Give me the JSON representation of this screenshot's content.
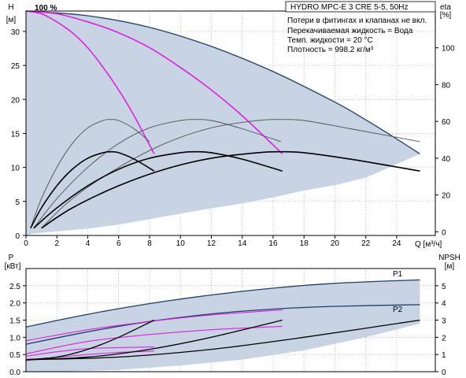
{
  "chart_data": [
    {
      "type": "line",
      "name": "HQ-curves",
      "title": "HYDRO MPC-E 3 CRE 5-5, 50Hz",
      "notes": [
        "Потери в фитингах и клапанах не вкл.",
        "Перекачиваемая жидкость = Вода",
        "Темп. жидкости = 20 °C",
        "Плотность = 998.2 кг/м³"
      ],
      "speed_label": "100 %",
      "xlabel": "Q [м³/ч]",
      "ylabel_left": [
        "H",
        "[м]"
      ],
      "ylabel_right": [
        "eta",
        "[%]"
      ],
      "xlim": [
        0,
        26.5
      ],
      "ylim_left": [
        0,
        33
      ],
      "ylim_right": [
        -2,
        120
      ],
      "x_ticks": [
        0,
        2,
        4,
        6,
        8,
        10,
        12,
        14,
        16,
        18,
        20,
        22,
        24
      ],
      "y_ticks_left": [
        0,
        5,
        10,
        15,
        20,
        25,
        30
      ],
      "y_ticks_right": [
        0,
        20,
        40,
        60,
        80,
        100
      ],
      "grid": true,
      "envelope_color": "#c8d4e4",
      "series": [
        {
          "role": "head-max",
          "color": "#1e3f6e",
          "x": [
            0,
            4,
            8,
            12,
            16,
            20,
            22,
            24,
            25.5
          ],
          "y": [
            33,
            32.3,
            30.6,
            27.8,
            24.1,
            19.6,
            17,
            14.2,
            12
          ]
        },
        {
          "role": "head-1pump",
          "color": "#e020e0",
          "x": [
            0,
            1,
            2,
            3,
            4,
            5,
            6,
            7,
            8,
            8.3
          ],
          "y": [
            33,
            32.6,
            31.4,
            29.8,
            27.6,
            24.7,
            21.4,
            17.6,
            13.3,
            12
          ]
        },
        {
          "role": "head-2pump",
          "color": "#e020e0",
          "x": [
            0,
            2,
            4,
            6,
            8,
            10,
            12,
            14,
            16,
            16.6
          ],
          "y": [
            33,
            32.6,
            31.4,
            29.8,
            27.6,
            24.7,
            21.4,
            17.6,
            13.3,
            12
          ]
        },
        {
          "role": "eta-thin-1",
          "color": "#505050",
          "x": [
            0.3,
            1,
            2,
            3,
            4,
            5,
            5.5,
            6,
            7,
            8
          ],
          "y": [
            2,
            18,
            35,
            48,
            56.5,
            60.5,
            61,
            60.5,
            56,
            49
          ]
        },
        {
          "role": "eta-thin-2",
          "color": "#505050",
          "x": [
            0.5,
            2,
            4,
            6,
            8,
            10,
            11,
            12,
            14,
            16.5
          ],
          "y": [
            2,
            18,
            35,
            48,
            56.5,
            60.5,
            61,
            60.5,
            56,
            49
          ]
        },
        {
          "role": "eta-thin-3",
          "color": "#505050",
          "x": [
            1,
            3,
            6,
            9,
            12,
            15,
            16.5,
            18,
            21,
            25.5
          ],
          "y": [
            2,
            18,
            35,
            48,
            56.5,
            60.5,
            61,
            60.5,
            56,
            49
          ]
        },
        {
          "role": "eta-thick-1",
          "color": "#000000",
          "x": [
            0.3,
            1,
            2,
            3,
            4,
            5,
            5.5,
            6,
            7,
            8.3
          ],
          "y": [
            2,
            13,
            25,
            34,
            40,
            43,
            43.5,
            43,
            39.5,
            33
          ]
        },
        {
          "role": "eta-thick-2",
          "color": "#000000",
          "x": [
            0.5,
            2,
            4,
            6,
            8,
            10,
            11,
            12,
            14,
            16.6
          ],
          "y": [
            2,
            13,
            25,
            34,
            40,
            43,
            43.5,
            43,
            39.5,
            33
          ]
        },
        {
          "role": "eta-thick-3",
          "color": "#000000",
          "x": [
            1,
            3,
            6,
            9,
            12,
            15,
            16.5,
            18,
            21,
            25.5
          ],
          "y": [
            2,
            13,
            25,
            34,
            40,
            43,
            43.5,
            43,
            39.5,
            33
          ]
        }
      ]
    },
    {
      "type": "line",
      "name": "P-NPSH-curves",
      "ylabel_left": [
        "P",
        "[кВт]"
      ],
      "ylabel_right": [
        "NPSH",
        "[м]"
      ],
      "xlim": [
        0,
        26.5
      ],
      "ylim_left": [
        0,
        3.0
      ],
      "ylim_right": [
        0,
        6
      ],
      "y_ticks_left": [
        0.0,
        0.5,
        1.0,
        1.5,
        2.0,
        2.5
      ],
      "y_tick_labels_left": [
        "0.0",
        "0.5",
        "1.0",
        "1.5",
        "2.0",
        "2.5"
      ],
      "y_ticks_right": [
        0,
        1,
        2,
        3,
        4,
        5
      ],
      "grid": true,
      "series": [
        {
          "name": "P1",
          "color": "#1e3f6e",
          "x": [
            0,
            4,
            8,
            12,
            16,
            20,
            25.5
          ],
          "y": [
            1.3,
            1.67,
            1.98,
            2.23,
            2.43,
            2.57,
            2.67
          ]
        },
        {
          "name": "P2",
          "color": "#1e3f6e",
          "x": [
            0,
            4,
            8,
            12,
            16,
            20,
            25.5
          ],
          "y": [
            0.8,
            1.16,
            1.46,
            1.68,
            1.82,
            1.9,
            1.95
          ]
        },
        {
          "role": "P-mag-1",
          "color": "#e020e0",
          "x": [
            0,
            4,
            8,
            12,
            16.6
          ],
          "y": [
            0.9,
            1.22,
            1.46,
            1.65,
            1.8
          ]
        },
        {
          "role": "P-mag-2",
          "color": "#e020e0",
          "x": [
            0,
            4,
            8,
            12,
            16.6
          ],
          "y": [
            0.52,
            0.88,
            1.08,
            1.22,
            1.32
          ]
        },
        {
          "role": "P-mag-3",
          "color": "#e020e0",
          "x": [
            0,
            2,
            4,
            6,
            8.3
          ],
          "y": [
            0.45,
            0.58,
            0.67,
            0.7,
            0.72
          ]
        },
        {
          "role": "P-mag-4",
          "color": "#e020e0",
          "x": [
            0,
            2,
            4,
            6,
            8.3
          ],
          "y": [
            0.32,
            0.42,
            0.5,
            0.56,
            0.6
          ]
        },
        {
          "role": "npsh-1",
          "color": "#000000",
          "x": [
            0,
            2,
            4,
            6,
            8.3
          ],
          "y": [
            0.7,
            0.85,
            1.3,
            2.0,
            3.0
          ]
        },
        {
          "role": "npsh-2",
          "color": "#000000",
          "x": [
            0,
            4,
            8,
            12,
            16.6
          ],
          "y": [
            0.7,
            0.85,
            1.3,
            2.0,
            3.0
          ]
        },
        {
          "role": "npsh-3",
          "color": "#000000",
          "x": [
            0,
            6,
            12,
            18,
            25.5
          ],
          "y": [
            0.7,
            0.85,
            1.3,
            2.0,
            3.0
          ]
        }
      ]
    }
  ]
}
